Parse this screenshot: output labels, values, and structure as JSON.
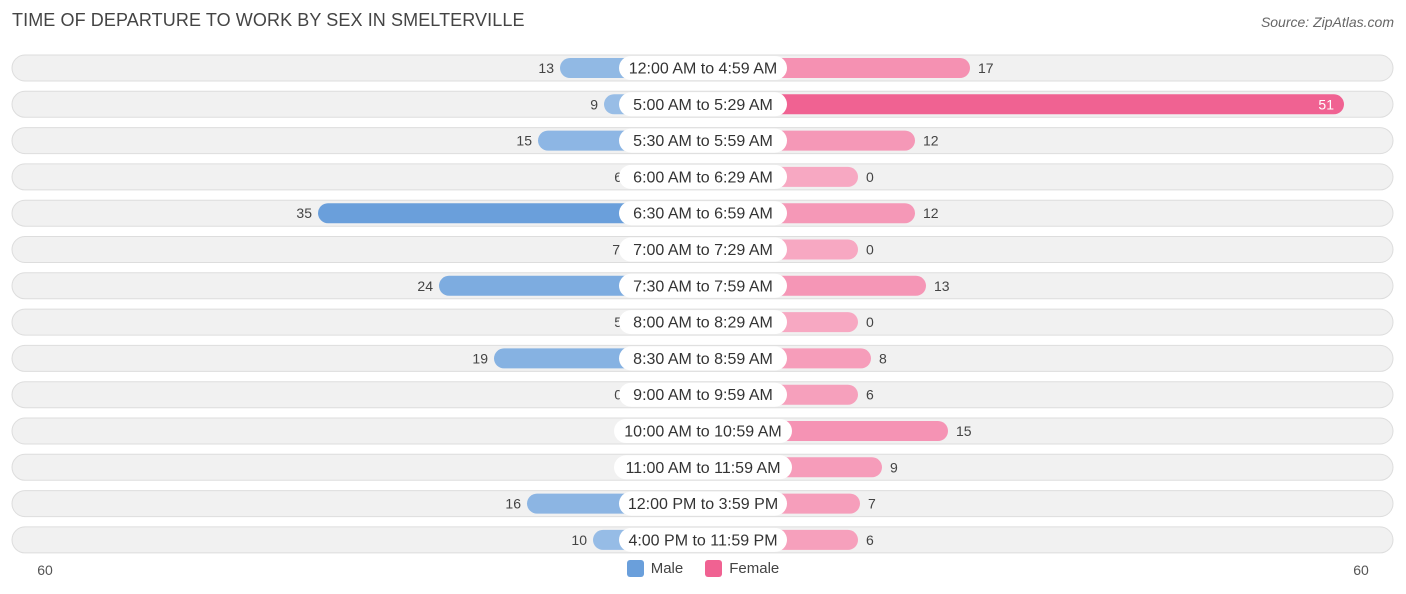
{
  "header": {
    "title": "TIME OF DEPARTURE TO WORK BY SEX IN SMELTERVILLE",
    "source": "Source: ZipAtlas.com"
  },
  "legend": {
    "male_label": "Male",
    "female_label": "Female"
  },
  "colors": {
    "male_light": "#a8c8ea",
    "male_dark": "#6a9fdb",
    "female_light": "#f7a8c2",
    "female_dark": "#f06292",
    "row_bg": "#f1f1f1",
    "row_border": "#dddddd"
  },
  "chart_data": {
    "type": "bar",
    "orientation": "horizontal-diverging",
    "title": "TIME OF DEPARTURE TO WORK BY SEX IN SMELTERVILLE",
    "categories": [
      "12:00 AM to 4:59 AM",
      "5:00 AM to 5:29 AM",
      "5:30 AM to 5:59 AM",
      "6:00 AM to 6:29 AM",
      "6:30 AM to 6:59 AM",
      "7:00 AM to 7:29 AM",
      "7:30 AM to 7:59 AM",
      "8:00 AM to 8:29 AM",
      "8:30 AM to 8:59 AM",
      "9:00 AM to 9:59 AM",
      "10:00 AM to 10:59 AM",
      "11:00 AM to 11:59 AM",
      "12:00 PM to 3:59 PM",
      "4:00 PM to 11:59 PM"
    ],
    "series": [
      {
        "name": "Male",
        "values": [
          13,
          9,
          15,
          6,
          35,
          7,
          24,
          5,
          19,
          0,
          0,
          0,
          16,
          10
        ]
      },
      {
        "name": "Female",
        "values": [
          17,
          51,
          12,
          0,
          12,
          0,
          13,
          0,
          8,
          6,
          15,
          9,
          7,
          6
        ]
      }
    ],
    "xlim": [
      -60,
      60
    ],
    "axis_tick_labels": [
      "60",
      "60"
    ],
    "legend_position": "bottom-center",
    "grid": false
  }
}
